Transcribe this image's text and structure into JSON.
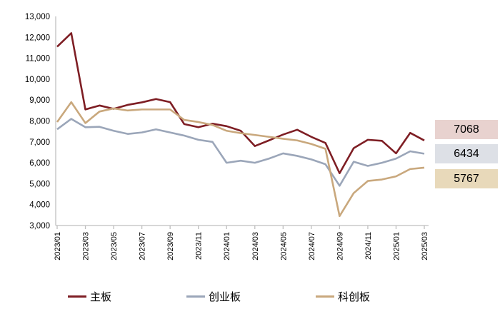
{
  "chart_data": {
    "type": "line",
    "grid": "off",
    "legend_position": "bottom",
    "axis_color": "#BFBFBF",
    "ylim": [
      3000,
      13000
    ],
    "y_ticks": [
      {
        "value": 3000,
        "label": "3,000"
      },
      {
        "value": 4000,
        "label": "4,000"
      },
      {
        "value": 5000,
        "label": "5,000"
      },
      {
        "value": 6000,
        "label": "6,000"
      },
      {
        "value": 7000,
        "label": "7,000"
      },
      {
        "value": 8000,
        "label": "8,000"
      },
      {
        "value": 9000,
        "label": "9,000"
      },
      {
        "value": 10000,
        "label": "10,000"
      },
      {
        "value": 11000,
        "label": "11,000"
      },
      {
        "value": 12000,
        "label": "12,000"
      },
      {
        "value": 13000,
        "label": "13,000"
      }
    ],
    "x": [
      "2023/01",
      "2023/02",
      "2023/03",
      "2023/04",
      "2023/05",
      "2023/06",
      "2023/07",
      "2023/08",
      "2023/09",
      "2023/10",
      "2023/11",
      "2023/12",
      "2024/01",
      "2024/02",
      "2024/03",
      "2024/04",
      "2024/05",
      "2024/06",
      "2024/07",
      "2024/08",
      "2024/09",
      "2024/10",
      "2024/11",
      "2024/12",
      "2025/01",
      "2025/02",
      "2025/03"
    ],
    "x_tick_labels": [
      "2023/01",
      "2023/03",
      "2023/05",
      "2023/07",
      "2023/09",
      "2023/11",
      "2024/01",
      "2024/03",
      "2024/05",
      "2024/07",
      "2024/09",
      "2024/11",
      "2025/01",
      "2025/03"
    ],
    "series": [
      {
        "name": "主板",
        "color": "#7E1E24",
        "values": [
          11550,
          12200,
          8550,
          8740,
          8580,
          8770,
          8890,
          9050,
          8900,
          7850,
          7700,
          7870,
          7750,
          7530,
          6800,
          7070,
          7350,
          7580,
          7240,
          6950,
          5500,
          6700,
          7100,
          7050,
          6450,
          7430,
          7068
        ]
      },
      {
        "name": "创业板",
        "color": "#9BA6B9",
        "values": [
          7600,
          8100,
          7700,
          7720,
          7530,
          7380,
          7450,
          7600,
          7450,
          7300,
          7100,
          7000,
          6000,
          6100,
          6000,
          6200,
          6450,
          6330,
          6160,
          5930,
          4900,
          6050,
          5850,
          6000,
          6200,
          6550,
          6434
        ]
      },
      {
        "name": "科创板",
        "color": "#C9A87D",
        "values": [
          7950,
          8900,
          7900,
          8450,
          8600,
          8500,
          8550,
          8550,
          8550,
          8050,
          7950,
          7810,
          7530,
          7415,
          7330,
          7240,
          7150,
          7070,
          6900,
          6670,
          3450,
          4550,
          5130,
          5200,
          5350,
          5700,
          5767
        ]
      }
    ],
    "end_labels": [
      {
        "value": "7068",
        "bg": "#E8D2CF"
      },
      {
        "value": "6434",
        "bg": "#DDE0E6"
      },
      {
        "value": "5767",
        "bg": "#E8D9BA"
      }
    ]
  }
}
